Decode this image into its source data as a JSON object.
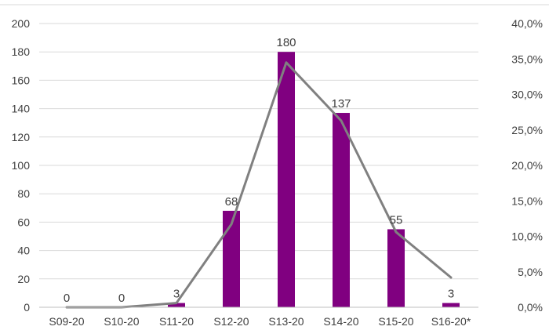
{
  "chart_data": {
    "type": "bar",
    "categories": [
      "S09-20",
      "S10-20",
      "S11-20",
      "S12-20",
      "S13-20",
      "S14-20",
      "S15-20",
      "S16-20*"
    ],
    "series": [
      {
        "kind": "bar",
        "axis": "left",
        "color": "#800080",
        "values": [
          0,
          0,
          3,
          68,
          180,
          137,
          55,
          3
        ],
        "data_labels": [
          "0",
          "0",
          "3",
          "68",
          "180",
          "137",
          "55",
          "3"
        ]
      },
      {
        "kind": "line",
        "axis": "right",
        "color": "#808080",
        "values": [
          0.0,
          0.0,
          0.6,
          11.7,
          34.5,
          26.3,
          10.6,
          4.2
        ]
      }
    ],
    "y_left": {
      "min": 0,
      "max": 200,
      "ticks": [
        0,
        20,
        40,
        60,
        80,
        100,
        120,
        140,
        160,
        180,
        200
      ],
      "tick_labels": [
        "0",
        "20",
        "40",
        "60",
        "80",
        "100",
        "120",
        "140",
        "160",
        "180",
        "200"
      ]
    },
    "y_right": {
      "min": 0,
      "max": 40,
      "ticks": [
        0,
        5,
        10,
        15,
        20,
        25,
        30,
        35,
        40
      ],
      "tick_labels": [
        "0,0%",
        "5,0%",
        "10,0%",
        "15,0%",
        "20,0%",
        "25,0%",
        "30,0%",
        "35,0%",
        "40,0%"
      ]
    },
    "grid": true,
    "legend": "none",
    "title": "",
    "xlabel": "",
    "ylabel": ""
  },
  "colors": {
    "bar": "#800080",
    "line": "#808080",
    "grid": "#d9d9d9",
    "text": "#404040"
  }
}
